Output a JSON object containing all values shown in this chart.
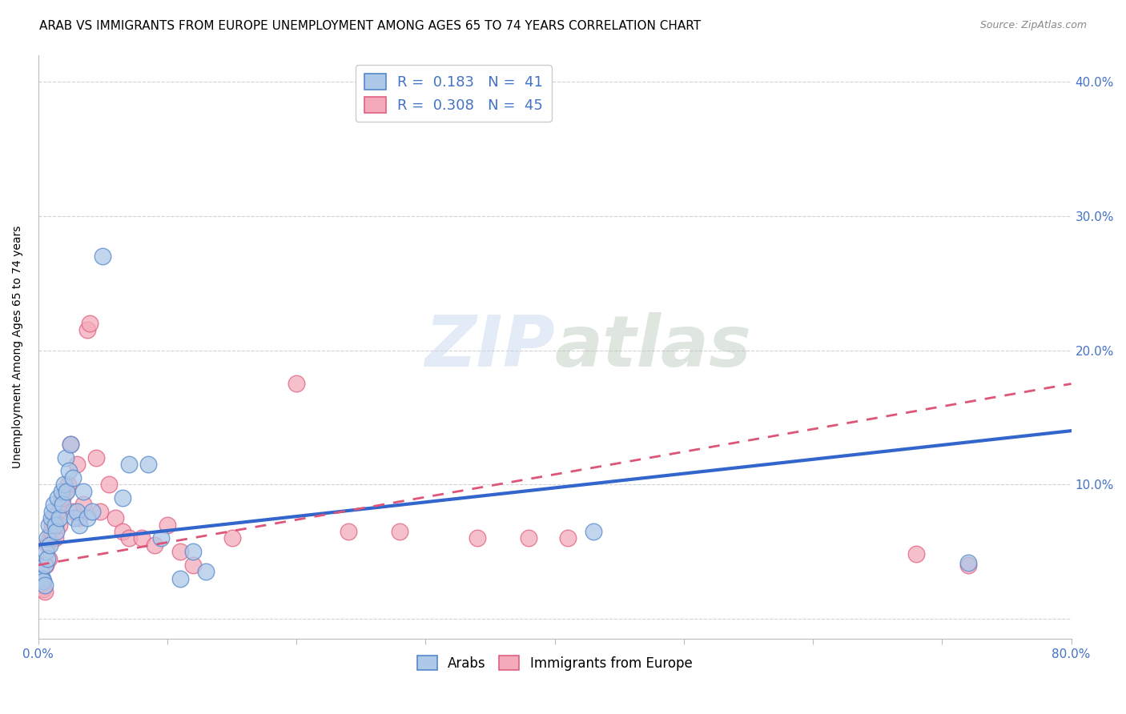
{
  "title": "ARAB VS IMMIGRANTS FROM EUROPE UNEMPLOYMENT AMONG AGES 65 TO 74 YEARS CORRELATION CHART",
  "source": "Source: ZipAtlas.com",
  "ylabel": "Unemployment Among Ages 65 to 74 years",
  "xlim": [
    0.0,
    0.8
  ],
  "ylim": [
    -0.015,
    0.42
  ],
  "xticks": [
    0.0,
    0.1,
    0.2,
    0.3,
    0.4,
    0.5,
    0.6,
    0.7,
    0.8
  ],
  "xtick_labels": [
    "0.0%",
    "",
    "",
    "",
    "",
    "",
    "",
    "",
    "80.0%"
  ],
  "yticks": [
    0.0,
    0.1,
    0.2,
    0.3,
    0.4
  ],
  "ytick_labels": [
    "",
    "10.0%",
    "20.0%",
    "30.0%",
    "40.0%"
  ],
  "watermark_zip": "ZIP",
  "watermark_atlas": "atlas",
  "legend_R_arab": "0.183",
  "legend_N_arab": "41",
  "legend_R_euro": "0.308",
  "legend_N_euro": "45",
  "color_arab_fill": "#adc8e8",
  "color_arab_edge": "#5588cc",
  "color_euro_fill": "#f4aabb",
  "color_euro_edge": "#e06080",
  "color_arab_line": "#3366cc",
  "color_euro_line": "#dd5577",
  "title_fontsize": 11,
  "axis_label_fontsize": 10,
  "tick_fontsize": 11,
  "arab_line_y0": 0.055,
  "arab_line_y1": 0.14,
  "euro_line_y0": 0.04,
  "euro_line_y1": 0.175,
  "arab_x": [
    0.002,
    0.003,
    0.004,
    0.005,
    0.005,
    0.006,
    0.007,
    0.007,
    0.008,
    0.009,
    0.01,
    0.011,
    0.012,
    0.013,
    0.014,
    0.015,
    0.016,
    0.018,
    0.019,
    0.02,
    0.021,
    0.022,
    0.024,
    0.025,
    0.027,
    0.028,
    0.03,
    0.032,
    0.035,
    0.038,
    0.042,
    0.05,
    0.065,
    0.07,
    0.085,
    0.095,
    0.11,
    0.12,
    0.13,
    0.43,
    0.72
  ],
  "arab_y": [
    0.035,
    0.03,
    0.028,
    0.025,
    0.04,
    0.05,
    0.06,
    0.045,
    0.07,
    0.055,
    0.075,
    0.08,
    0.085,
    0.07,
    0.065,
    0.09,
    0.075,
    0.095,
    0.085,
    0.1,
    0.12,
    0.095,
    0.11,
    0.13,
    0.105,
    0.075,
    0.08,
    0.07,
    0.095,
    0.075,
    0.08,
    0.27,
    0.09,
    0.115,
    0.115,
    0.06,
    0.03,
    0.05,
    0.035,
    0.065,
    0.042
  ],
  "euro_x": [
    0.002,
    0.003,
    0.004,
    0.005,
    0.006,
    0.007,
    0.008,
    0.009,
    0.01,
    0.011,
    0.012,
    0.013,
    0.015,
    0.016,
    0.017,
    0.019,
    0.021,
    0.023,
    0.025,
    0.027,
    0.03,
    0.032,
    0.035,
    0.038,
    0.04,
    0.045,
    0.048,
    0.055,
    0.06,
    0.065,
    0.07,
    0.08,
    0.09,
    0.1,
    0.11,
    0.12,
    0.15,
    0.2,
    0.24,
    0.28,
    0.34,
    0.38,
    0.41,
    0.68,
    0.72
  ],
  "euro_y": [
    0.03,
    0.025,
    0.022,
    0.02,
    0.04,
    0.055,
    0.045,
    0.06,
    0.065,
    0.07,
    0.075,
    0.06,
    0.08,
    0.07,
    0.085,
    0.09,
    0.095,
    0.1,
    0.13,
    0.08,
    0.115,
    0.075,
    0.085,
    0.215,
    0.22,
    0.12,
    0.08,
    0.1,
    0.075,
    0.065,
    0.06,
    0.06,
    0.055,
    0.07,
    0.05,
    0.04,
    0.06,
    0.175,
    0.065,
    0.065,
    0.06,
    0.06,
    0.06,
    0.048,
    0.04
  ]
}
